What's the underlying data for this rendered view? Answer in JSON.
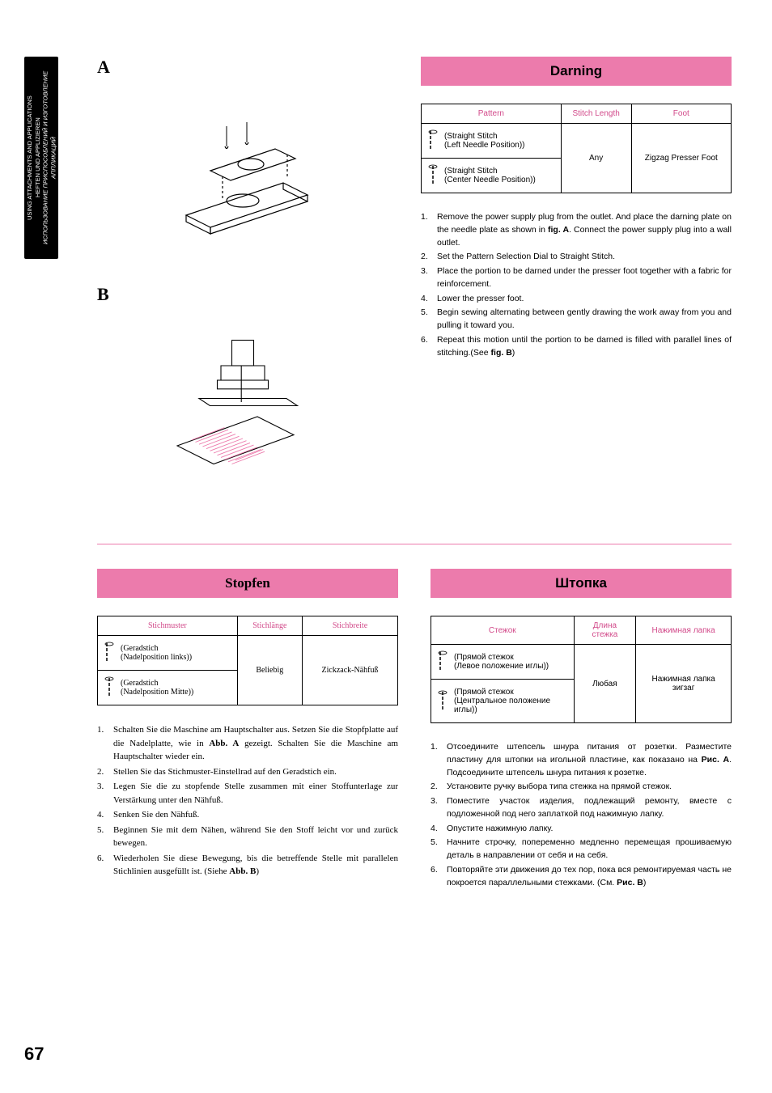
{
  "sidebar": {
    "line1": "USING ATTACHMENTS AND APPLICATIONS",
    "line2": "HEFTEN UND APPLIZIEREN",
    "line3": "ИСПОЛЬЗОВАНИЕ ПРИСПОСОБЛЕНИЙ И ИЗГОТОВЛЕНИЕ АППЛИКАЦИЙ"
  },
  "figA": {
    "label": "A"
  },
  "figB": {
    "label": "B"
  },
  "darning": {
    "title": "Darning",
    "headers": {
      "pattern": "Pattern",
      "stitchLength": "Stitch Length",
      "foot": "Foot"
    },
    "rows": [
      {
        "pattern": "(Straight Stitch\n(Left Needle Position))"
      },
      {
        "pattern": "(Straight Stitch\n(Center Needle Position))"
      }
    ],
    "stitchLength": "Any",
    "foot": "Zigzag Presser Foot",
    "steps": [
      "Remove the power supply plug from the outlet.  And place the darning plate on the needle plate as shown in <b>fig. A</b>. Connect the power supply plug into a wall outlet.",
      "Set the Pattern Selection Dial to Straight Stitch.",
      "Place the portion to be darned under the presser foot together with a fabric for reinforcement.",
      "Lower the presser foot.",
      "Begin sewing alternating between gently drawing the work away from you and pulling it toward you.",
      "Repeat this motion until the portion to be darned is filled with parallel lines of stitching.(See <b>fig. B</b>)"
    ]
  },
  "stopfen": {
    "title": "Stopfen",
    "headers": {
      "pattern": "Stichmuster",
      "stitchLength": "Stichlänge",
      "foot": "Stichbreite"
    },
    "rows": [
      {
        "pattern": "(Geradstich\n(Nadelposition links))"
      },
      {
        "pattern": "(Geradstich\n(Nadelposition Mitte))"
      }
    ],
    "stitchLength": "Beliebig",
    "foot": "Zickzack-Nähfuß",
    "steps": [
      "Schalten Sie die Maschine am Hauptschalter aus. Setzen Sie die Stopfplatte auf die Nadelplatte, wie in <b>Abb. A</b> gezeigt. Schalten Sie die Maschine am Hauptschalter wieder ein.",
      "Stellen Sie das Stichmuster-Einstellrad auf den Geradstich ein.",
      "Legen Sie die zu stopfende Stelle zusammen mit einer Stoffunterlage zur Verstärkung unter den Nähfuß.",
      "Senken Sie den Nähfuß.",
      "Beginnen Sie mit dem Nähen, während Sie den Stoff leicht vor und zurück bewegen.",
      "Wiederholen Sie diese Bewegung, bis die betreffende Stelle mit parallelen Stichlinien ausgefüllt ist. (Siehe <b>Abb. B</b>)"
    ]
  },
  "shtopka": {
    "title": "Штопка",
    "headers": {
      "pattern": "Стежок",
      "stitchLength": "Длина стежка",
      "foot": "Нажимная лапка"
    },
    "rows": [
      {
        "pattern": "(Прямой стежок\n(Левое положение иглы))"
      },
      {
        "pattern": "(Прямой стежок\n(Центральное положение иглы))"
      }
    ],
    "stitchLength": "Любая",
    "foot": "Нажимная лапка зигзаг",
    "steps": [
      "Отсоедините штепсель шнура питания от розетки. Разместите пластину для штопки на игольной пластине, как показано на <b>Рис. A</b>. Подсоедините штепсель шнура питания к розетке.",
      "Установите ручку выбора типа стежка на прямой стежок.",
      "Поместите участок изделия, подлежащий ремонту, вместе с подложенной под него заплаткой под нажимную лапку.",
      "Опустите нажимную лапку.",
      "Начните строчку, попеременно медленно перемещая прошиваемую деталь в направлении от себя и на себя.",
      "Повторяйте эти движения до тех пор, пока вся ремонтируемая часть не покроется параллельными стежками. (См. <b>Рис. B</b>)"
    ]
  },
  "pageNumber": "67",
  "colors": {
    "pink": "#ec7bac",
    "headerText": "#d24a8a"
  }
}
